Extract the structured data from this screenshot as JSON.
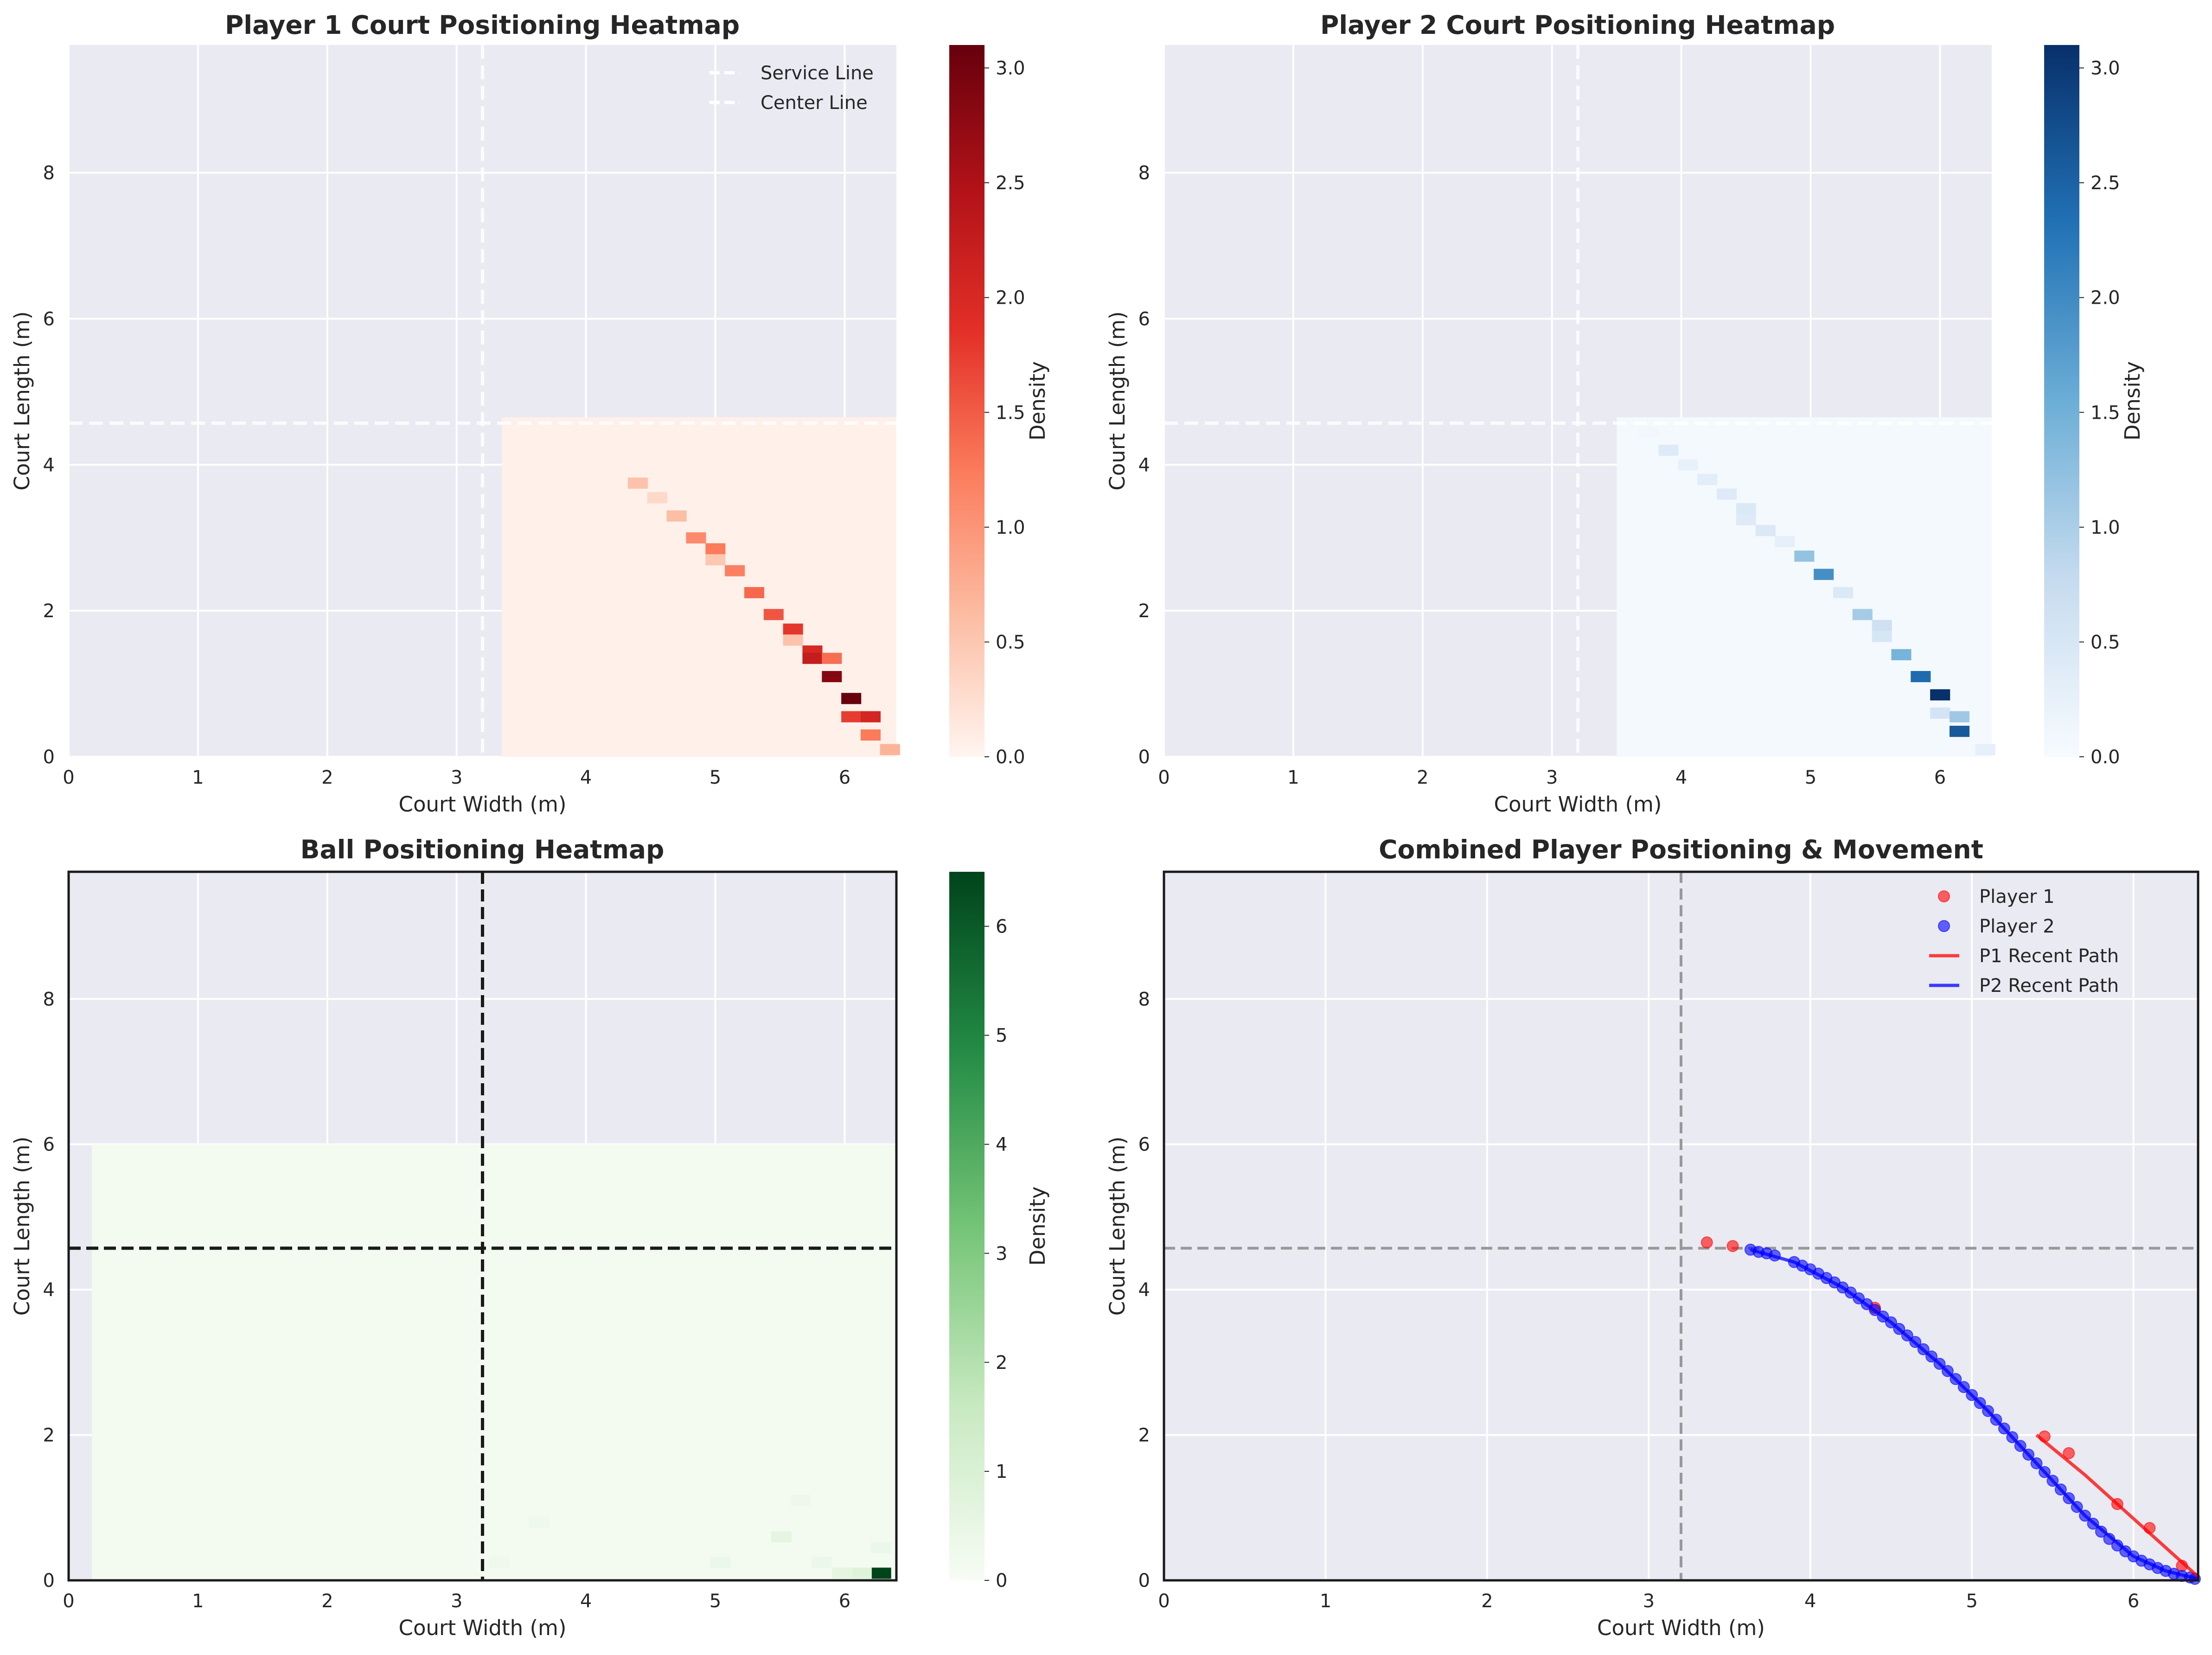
{
  "colors": {
    "axes_bg": "#eaeaf2",
    "grid": "#ffffff",
    "reds": [
      "#fff5f0",
      "#fcbca2",
      "#fb7c5c",
      "#e32f27",
      "#b11218",
      "#67000d"
    ],
    "blues": [
      "#f7fbff",
      "#c6dbef",
      "#6baed6",
      "#2171b5",
      "#08306b"
    ],
    "greens": [
      "#f7fcf5",
      "#c7e9c0",
      "#74c476",
      "#238b45",
      "#00441b"
    ],
    "player1": "#ff0000",
    "player2": "#0000ff"
  },
  "chart_data": [
    {
      "type": "heatmap",
      "title": "Player 1 Court Positioning Heatmap",
      "xlabel": "Court Width (m)",
      "ylabel": "Court Length (m)",
      "xlim": [
        0,
        6.4
      ],
      "ylim": [
        0,
        9.75
      ],
      "xticks": [
        "0",
        "1",
        "2",
        "3",
        "4",
        "5",
        "6"
      ],
      "yticks": [
        "0",
        "2",
        "4",
        "6",
        "8"
      ],
      "colorbar": {
        "label": "Density",
        "cmap": "reds",
        "vmin": 0.0,
        "vmax": 3.1,
        "ticks": [
          "0.0",
          "0.5",
          "1.0",
          "1.5",
          "2.0",
          "2.5",
          "3.0"
        ]
      },
      "extent": {
        "x": [
          3.35,
          6.4
        ],
        "y": [
          0,
          4.65
        ]
      },
      "bins": [
        20,
        31
      ],
      "base_density": 0.05,
      "lines": [
        {
          "name": "Service Line",
          "orientation": "h",
          "value": 4.57,
          "style": "white-dashed"
        },
        {
          "name": "Center Line",
          "orientation": "v",
          "value": 3.2,
          "style": "white-dashed"
        }
      ],
      "legend": {
        "position": "upper right",
        "entries": [
          "Service Line",
          "Center Line"
        ]
      },
      "cells": [
        {
          "x": 4.4,
          "y": 3.75,
          "v": 0.55
        },
        {
          "x": 4.55,
          "y": 3.55,
          "v": 0.3
        },
        {
          "x": 4.7,
          "y": 3.3,
          "v": 0.6
        },
        {
          "x": 4.85,
          "y": 3.0,
          "v": 1.1
        },
        {
          "x": 5.0,
          "y": 2.85,
          "v": 1.25
        },
        {
          "x": 5.0,
          "y": 2.7,
          "v": 0.5
        },
        {
          "x": 5.15,
          "y": 2.55,
          "v": 1.2
        },
        {
          "x": 5.3,
          "y": 2.25,
          "v": 1.4
        },
        {
          "x": 5.45,
          "y": 1.95,
          "v": 1.55
        },
        {
          "x": 5.6,
          "y": 1.75,
          "v": 1.8
        },
        {
          "x": 5.6,
          "y": 1.6,
          "v": 0.55
        },
        {
          "x": 5.75,
          "y": 1.45,
          "v": 2.0
        },
        {
          "x": 5.75,
          "y": 1.35,
          "v": 2.25
        },
        {
          "x": 5.9,
          "y": 1.35,
          "v": 1.35
        },
        {
          "x": 5.9,
          "y": 1.1,
          "v": 2.85
        },
        {
          "x": 6.05,
          "y": 0.8,
          "v": 3.1
        },
        {
          "x": 6.05,
          "y": 0.55,
          "v": 1.75
        },
        {
          "x": 6.2,
          "y": 0.55,
          "v": 2.05
        },
        {
          "x": 6.2,
          "y": 0.3,
          "v": 1.25
        },
        {
          "x": 6.35,
          "y": 0.1,
          "v": 0.7
        }
      ]
    },
    {
      "type": "heatmap",
      "title": "Player 2 Court Positioning Heatmap",
      "xlabel": "Court Width (m)",
      "ylabel": "Court Length (m)",
      "xlim": [
        0,
        6.4
      ],
      "ylim": [
        0,
        9.75
      ],
      "xticks": [
        "0",
        "1",
        "2",
        "3",
        "4",
        "5",
        "6"
      ],
      "yticks": [
        "0",
        "2",
        "4",
        "6",
        "8"
      ],
      "colorbar": {
        "label": "Density",
        "cmap": "blues",
        "vmin": 0.0,
        "vmax": 3.1,
        "ticks": [
          "0.0",
          "0.5",
          "1.0",
          "1.5",
          "2.0",
          "2.5",
          "3.0"
        ]
      },
      "extent": {
        "x": [
          3.5,
          6.4
        ],
        "y": [
          0,
          4.65
        ]
      },
      "bins": [
        19,
        31
      ],
      "base_density": 0.05,
      "lines": [
        {
          "orientation": "h",
          "value": 4.57,
          "style": "white-dashed"
        },
        {
          "orientation": "v",
          "value": 3.2,
          "style": "white-dashed"
        }
      ],
      "cells": [
        {
          "x": 3.75,
          "y": 4.45,
          "v": 0.1
        },
        {
          "x": 3.9,
          "y": 4.2,
          "v": 0.4
        },
        {
          "x": 4.05,
          "y": 4.0,
          "v": 0.25
        },
        {
          "x": 4.2,
          "y": 3.8,
          "v": 0.35
        },
        {
          "x": 4.35,
          "y": 3.6,
          "v": 0.4
        },
        {
          "x": 4.5,
          "y": 3.4,
          "v": 0.45
        },
        {
          "x": 4.5,
          "y": 3.25,
          "v": 0.4
        },
        {
          "x": 4.65,
          "y": 3.1,
          "v": 0.45
        },
        {
          "x": 4.8,
          "y": 2.95,
          "v": 0.3
        },
        {
          "x": 4.95,
          "y": 2.75,
          "v": 1.2
        },
        {
          "x": 5.1,
          "y": 2.5,
          "v": 1.95
        },
        {
          "x": 5.25,
          "y": 2.25,
          "v": 0.45
        },
        {
          "x": 5.4,
          "y": 1.95,
          "v": 1.05
        },
        {
          "x": 5.55,
          "y": 1.8,
          "v": 0.65
        },
        {
          "x": 5.55,
          "y": 1.65,
          "v": 0.5
        },
        {
          "x": 5.7,
          "y": 1.4,
          "v": 1.45
        },
        {
          "x": 5.85,
          "y": 1.1,
          "v": 2.4
        },
        {
          "x": 6.0,
          "y": 0.85,
          "v": 3.1
        },
        {
          "x": 6.0,
          "y": 0.6,
          "v": 0.55
        },
        {
          "x": 6.15,
          "y": 0.55,
          "v": 1.1
        },
        {
          "x": 6.15,
          "y": 0.35,
          "v": 2.6
        },
        {
          "x": 6.35,
          "y": 0.1,
          "v": 0.3
        }
      ]
    },
    {
      "type": "heatmap",
      "title": "Ball Positioning Heatmap",
      "xlabel": "Court Width (m)",
      "ylabel": "Court Length (m)",
      "xlim": [
        0,
        6.4
      ],
      "ylim": [
        0,
        9.75
      ],
      "xticks": [
        "0",
        "1",
        "2",
        "3",
        "4",
        "5",
        "6"
      ],
      "yticks": [
        "0",
        "2",
        "4",
        "6",
        "8"
      ],
      "colorbar": {
        "label": "Density",
        "cmap": "greens",
        "vmin": 0,
        "vmax": 6.5,
        "ticks": [
          "0",
          "1",
          "2",
          "3",
          "4",
          "5",
          "6"
        ]
      },
      "extent": {
        "x": [
          0.18,
          6.4
        ],
        "y": [
          0,
          6.0
        ]
      },
      "bins": [
        40,
        40
      ],
      "base_density": 0.12,
      "lines": [
        {
          "orientation": "h",
          "value": 4.57,
          "style": "black-dashed"
        },
        {
          "orientation": "v",
          "value": 3.2,
          "style": "black-dashed"
        }
      ],
      "frame": "black",
      "cells": [
        {
          "x": 6.28,
          "y": 0.1,
          "v": 6.5
        },
        {
          "x": 6.28,
          "y": 0.45,
          "v": 0.4
        },
        {
          "x": 6.13,
          "y": 0.1,
          "v": 0.8
        },
        {
          "x": 5.98,
          "y": 0.1,
          "v": 0.6
        },
        {
          "x": 5.82,
          "y": 0.25,
          "v": 0.4
        },
        {
          "x": 5.51,
          "y": 0.6,
          "v": 0.6
        },
        {
          "x": 5.66,
          "y": 1.1,
          "v": 0.35
        },
        {
          "x": 5.04,
          "y": 0.25,
          "v": 0.4
        },
        {
          "x": 3.64,
          "y": 0.8,
          "v": 0.3
        },
        {
          "x": 3.33,
          "y": 0.25,
          "v": 0.3
        }
      ]
    },
    {
      "type": "scatter",
      "title": "Combined Player Positioning & Movement",
      "xlabel": "Court Width (m)",
      "ylabel": "Court Length (m)",
      "xlim": [
        0,
        6.4
      ],
      "ylim": [
        0,
        9.75
      ],
      "xticks": [
        "0",
        "1",
        "2",
        "3",
        "4",
        "5",
        "6"
      ],
      "yticks": [
        "0",
        "2",
        "4",
        "6",
        "8"
      ],
      "frame": "black",
      "lines": [
        {
          "orientation": "h",
          "value": 4.57,
          "style": "gray-dashed"
        },
        {
          "orientation": "v",
          "value": 3.2,
          "style": "gray-dashed"
        }
      ],
      "legend": {
        "position": "upper right",
        "entries": [
          "Player 1",
          "Player 2",
          "P1 Recent Path",
          "P2 Recent Path"
        ]
      },
      "series": [
        {
          "name": "Player 1",
          "kind": "points",
          "color": "#ff0000",
          "x": [
            3.36,
            3.52,
            4.4,
            5.45,
            5.6,
            5.9,
            6.1,
            6.3
          ],
          "y": [
            4.65,
            4.6,
            3.75,
            1.98,
            1.75,
            1.05,
            0.72,
            0.2
          ]
        },
        {
          "name": "Player 2",
          "kind": "points",
          "color": "#0000ff",
          "x": [
            3.63,
            3.68,
            3.73,
            3.78,
            3.9,
            3.95,
            4.0,
            4.05,
            4.1,
            4.15,
            4.2,
            4.25,
            4.3,
            4.35,
            4.4,
            4.45,
            4.5,
            4.55,
            4.6,
            4.65,
            4.7,
            4.75,
            4.8,
            4.85,
            4.9,
            4.95,
            5.0,
            5.05,
            5.1,
            5.15,
            5.2,
            5.25,
            5.3,
            5.35,
            5.4,
            5.45,
            5.5,
            5.55,
            5.6,
            5.65,
            5.7,
            5.75,
            5.8,
            5.85,
            5.9,
            5.95,
            6.0,
            6.05,
            6.1,
            6.15,
            6.2,
            6.25,
            6.3,
            6.35,
            6.38
          ],
          "y": [
            4.55,
            4.52,
            4.5,
            4.47,
            4.38,
            4.33,
            4.28,
            4.22,
            4.16,
            4.1,
            4.03,
            3.96,
            3.88,
            3.8,
            3.72,
            3.63,
            3.55,
            3.46,
            3.37,
            3.28,
            3.18,
            3.08,
            2.98,
            2.88,
            2.77,
            2.66,
            2.55,
            2.44,
            2.33,
            2.21,
            2.09,
            1.97,
            1.85,
            1.73,
            1.61,
            1.49,
            1.37,
            1.25,
            1.13,
            1.01,
            0.89,
            0.78,
            0.67,
            0.57,
            0.48,
            0.4,
            0.33,
            0.27,
            0.22,
            0.17,
            0.13,
            0.09,
            0.06,
            0.04,
            0.02
          ]
        },
        {
          "name": "P1 Recent Path",
          "kind": "line",
          "color": "#ff0000",
          "x": [
            5.4,
            5.7,
            6.0,
            6.2,
            6.4
          ],
          "y": [
            2.0,
            1.45,
            0.85,
            0.45,
            0.05
          ]
        },
        {
          "name": "P2 Recent Path",
          "kind": "line",
          "color": "#0000ff",
          "x": [
            3.63,
            3.9,
            4.2,
            4.5,
            4.8,
            5.1,
            5.4,
            5.7,
            6.0,
            6.2,
            6.4
          ],
          "y": [
            4.55,
            4.38,
            4.03,
            3.55,
            2.98,
            2.33,
            1.61,
            0.89,
            0.33,
            0.13,
            0.02
          ]
        }
      ]
    }
  ]
}
